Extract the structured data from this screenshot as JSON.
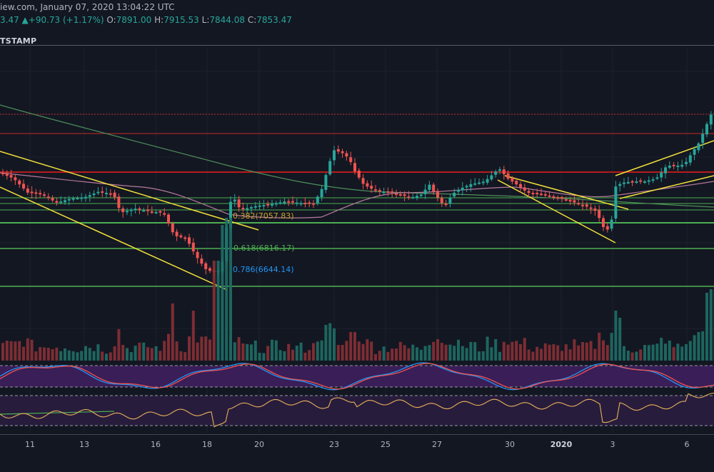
{
  "header": {
    "line1_prefix": "iew.com, January 07, 2020 13:04:22 UTC",
    "last_fragment": "3.47",
    "change": "+90.73 (+1.17%)",
    "open_label": "O:",
    "open_value": "7891.00",
    "high_label": "H:",
    "high_value": "7915.53",
    "low_label": "L:",
    "low_value": "7844.08",
    "close_label": "C:",
    "close_value": "7853.47",
    "up_arrow": "▲"
  },
  "exchange_label": "TSTAMP",
  "colors": {
    "background": "#131722",
    "bull": "#26a69a",
    "bear": "#ef5350",
    "channel": "#f2e03a",
    "level_green": "#4caf50",
    "level_red": "#c62828",
    "ma_pink": "#b7799e",
    "ma_green": "#4e8f5a",
    "rsi_bg": "#3f1f5e",
    "stoch_k": "#2196f3",
    "stoch_d": "#ef5350",
    "osc_line": "#e9b05a"
  },
  "chart_data": {
    "type": "candlestick",
    "fib_levels": [
      {
        "label": "0.382(7057.83)",
        "value": 7057.83,
        "color": "#c9a227"
      },
      {
        "label": "0.618(6816.17)",
        "value": 6816.17,
        "color": "#4caf50"
      },
      {
        "label": "0.786(6644.14)",
        "value": 6644.14,
        "color": "#2196f3"
      }
    ],
    "x_ticks": [
      {
        "label": "11",
        "bold": false
      },
      {
        "label": "13",
        "bold": false
      },
      {
        "label": "16",
        "bold": false
      },
      {
        "label": "18",
        "bold": false
      },
      {
        "label": "20",
        "bold": false
      },
      {
        "label": "23",
        "bold": false
      },
      {
        "label": "25",
        "bold": false
      },
      {
        "label": "27",
        "bold": false
      },
      {
        "label": "30",
        "bold": false
      },
      {
        "label": "2020",
        "bold": true
      },
      {
        "label": "3",
        "bold": false
      },
      {
        "label": "6",
        "bold": false
      }
    ],
    "ohlc": {
      "open": 7891.0,
      "high": 7915.53,
      "low": 7844.08,
      "close": 7853.47,
      "change": 90.73,
      "change_pct": 1.17
    },
    "grid": true
  }
}
